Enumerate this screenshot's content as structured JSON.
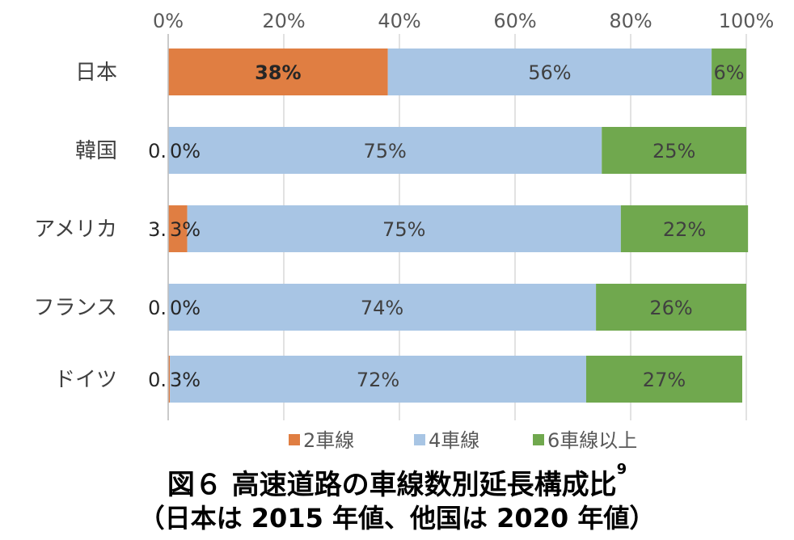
{
  "chart_data": {
    "type": "bar",
    "orientation": "horizontal",
    "stacked": true,
    "categories": [
      "日本",
      "韓国",
      "アメリカ",
      "フランス",
      "ドイツ"
    ],
    "xlim": [
      0,
      100
    ],
    "x_ticks": [
      "0%",
      "20%",
      "40%",
      "60%",
      "80%",
      "100%"
    ],
    "grid": true,
    "legend_position": "bottom",
    "series": [
      {
        "name": "2車線",
        "color": "#e07e42",
        "values": [
          38,
          0.0,
          3.3,
          0.0,
          0.3
        ],
        "labels": [
          "38%",
          "0.0%",
          "3.3%",
          "0.0%",
          "0.3%"
        ]
      },
      {
        "name": "4車線",
        "color": "#a8c5e4",
        "values": [
          56,
          75,
          75,
          74,
          72
        ],
        "labels": [
          "56%",
          "75%",
          "75%",
          "74%",
          "72%"
        ]
      },
      {
        "name": "6車線以上",
        "color": "#70a84e",
        "values": [
          6,
          25,
          22,
          26,
          27
        ],
        "labels": [
          "6%",
          "25%",
          "22%",
          "26%",
          "27%"
        ]
      }
    ],
    "label_texts": {
      "small_left_parts": [
        "",
        "0.",
        "3.",
        "0.",
        "0."
      ],
      "small_right_parts": [
        "",
        "0%",
        "3%",
        "0%",
        "3%"
      ]
    }
  },
  "caption": {
    "line1": "図６ 高速道路の車線数別延長構成比",
    "line1_sup": "9",
    "line2": "（日本は 2015 年値、他国は 2020 年値）"
  }
}
